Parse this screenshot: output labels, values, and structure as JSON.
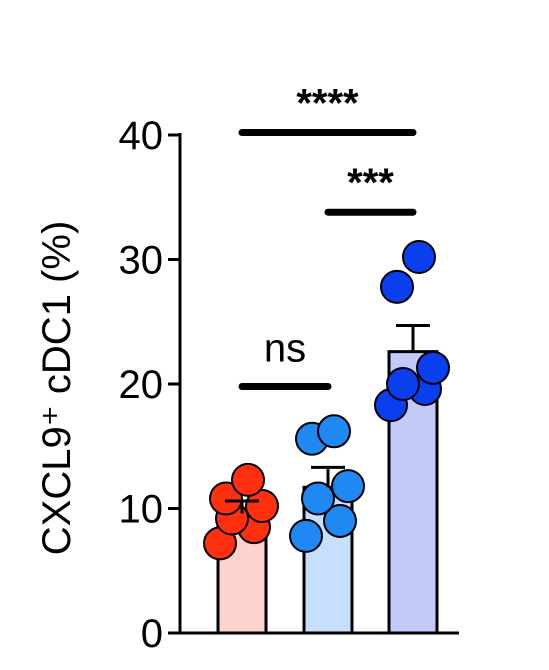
{
  "chart_data": {
    "type": "bar",
    "ylabel": "CXCL9⁺ cDC1 (%)",
    "ylim": [
      0,
      40
    ],
    "yticks": [
      0,
      10,
      20,
      30,
      40
    ],
    "categories": [
      "",
      "",
      ""
    ],
    "bars": [
      {
        "mean": 9.6,
        "sem": 1.0,
        "fill": "#fbd3cc",
        "point_color": "#ff3010",
        "points": [
          7.2,
          8.5,
          9.2,
          10.2,
          10.8,
          12.3
        ]
      },
      {
        "mean": 11.7,
        "sem": 1.6,
        "fill": "#c6e0fb",
        "point_color": "#1f88f2",
        "points": [
          7.8,
          9.0,
          10.8,
          11.8,
          15.6,
          16.2
        ]
      },
      {
        "mean": 22.6,
        "sem": 2.1,
        "fill": "#c4caf7",
        "point_color": "#0a3ff0",
        "points": [
          18.3,
          19.6,
          20.0,
          21.3,
          27.8,
          30.2
        ]
      }
    ],
    "significance": [
      {
        "label": "ns",
        "from": 0,
        "to": 1,
        "y": 19.8
      },
      {
        "label": "***",
        "from": 1,
        "to": 2,
        "y": 33.8
      },
      {
        "label": "****",
        "from": 0,
        "to": 2,
        "y": 40.2
      }
    ]
  }
}
